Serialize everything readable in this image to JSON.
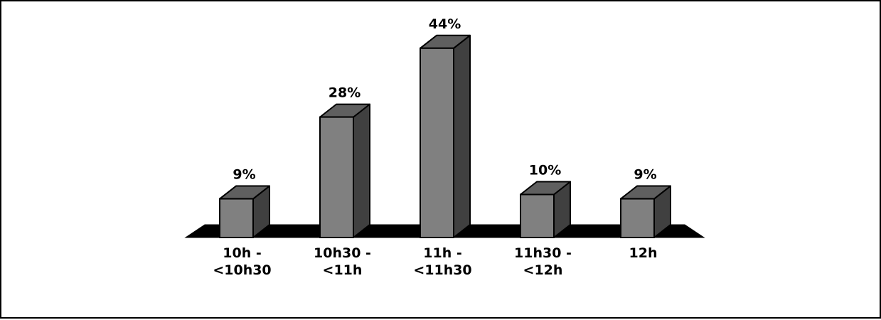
{
  "chart_data": {
    "type": "bar",
    "style": "3d-columns",
    "categories": [
      [
        "10h -",
        "<10h30"
      ],
      [
        "10h30 -",
        "<11h"
      ],
      [
        "11h -",
        "<11h30"
      ],
      [
        "11h30 -",
        "<12h"
      ],
      [
        "12h"
      ]
    ],
    "values": [
      9,
      28,
      44,
      10,
      9
    ],
    "value_labels": [
      "9%",
      "28%",
      "44%",
      "10%",
      "9%"
    ],
    "unit": "%",
    "title": "",
    "xlabel": "",
    "ylabel": "",
    "ylim": [
      0,
      44
    ],
    "grid": false,
    "legend": "none",
    "colors": {
      "front": "#808080",
      "top": "#5f5f5f",
      "side": "#404040",
      "floor": "#000000",
      "outline": "#000000",
      "border": "#000000",
      "background": "#ffffff"
    }
  }
}
